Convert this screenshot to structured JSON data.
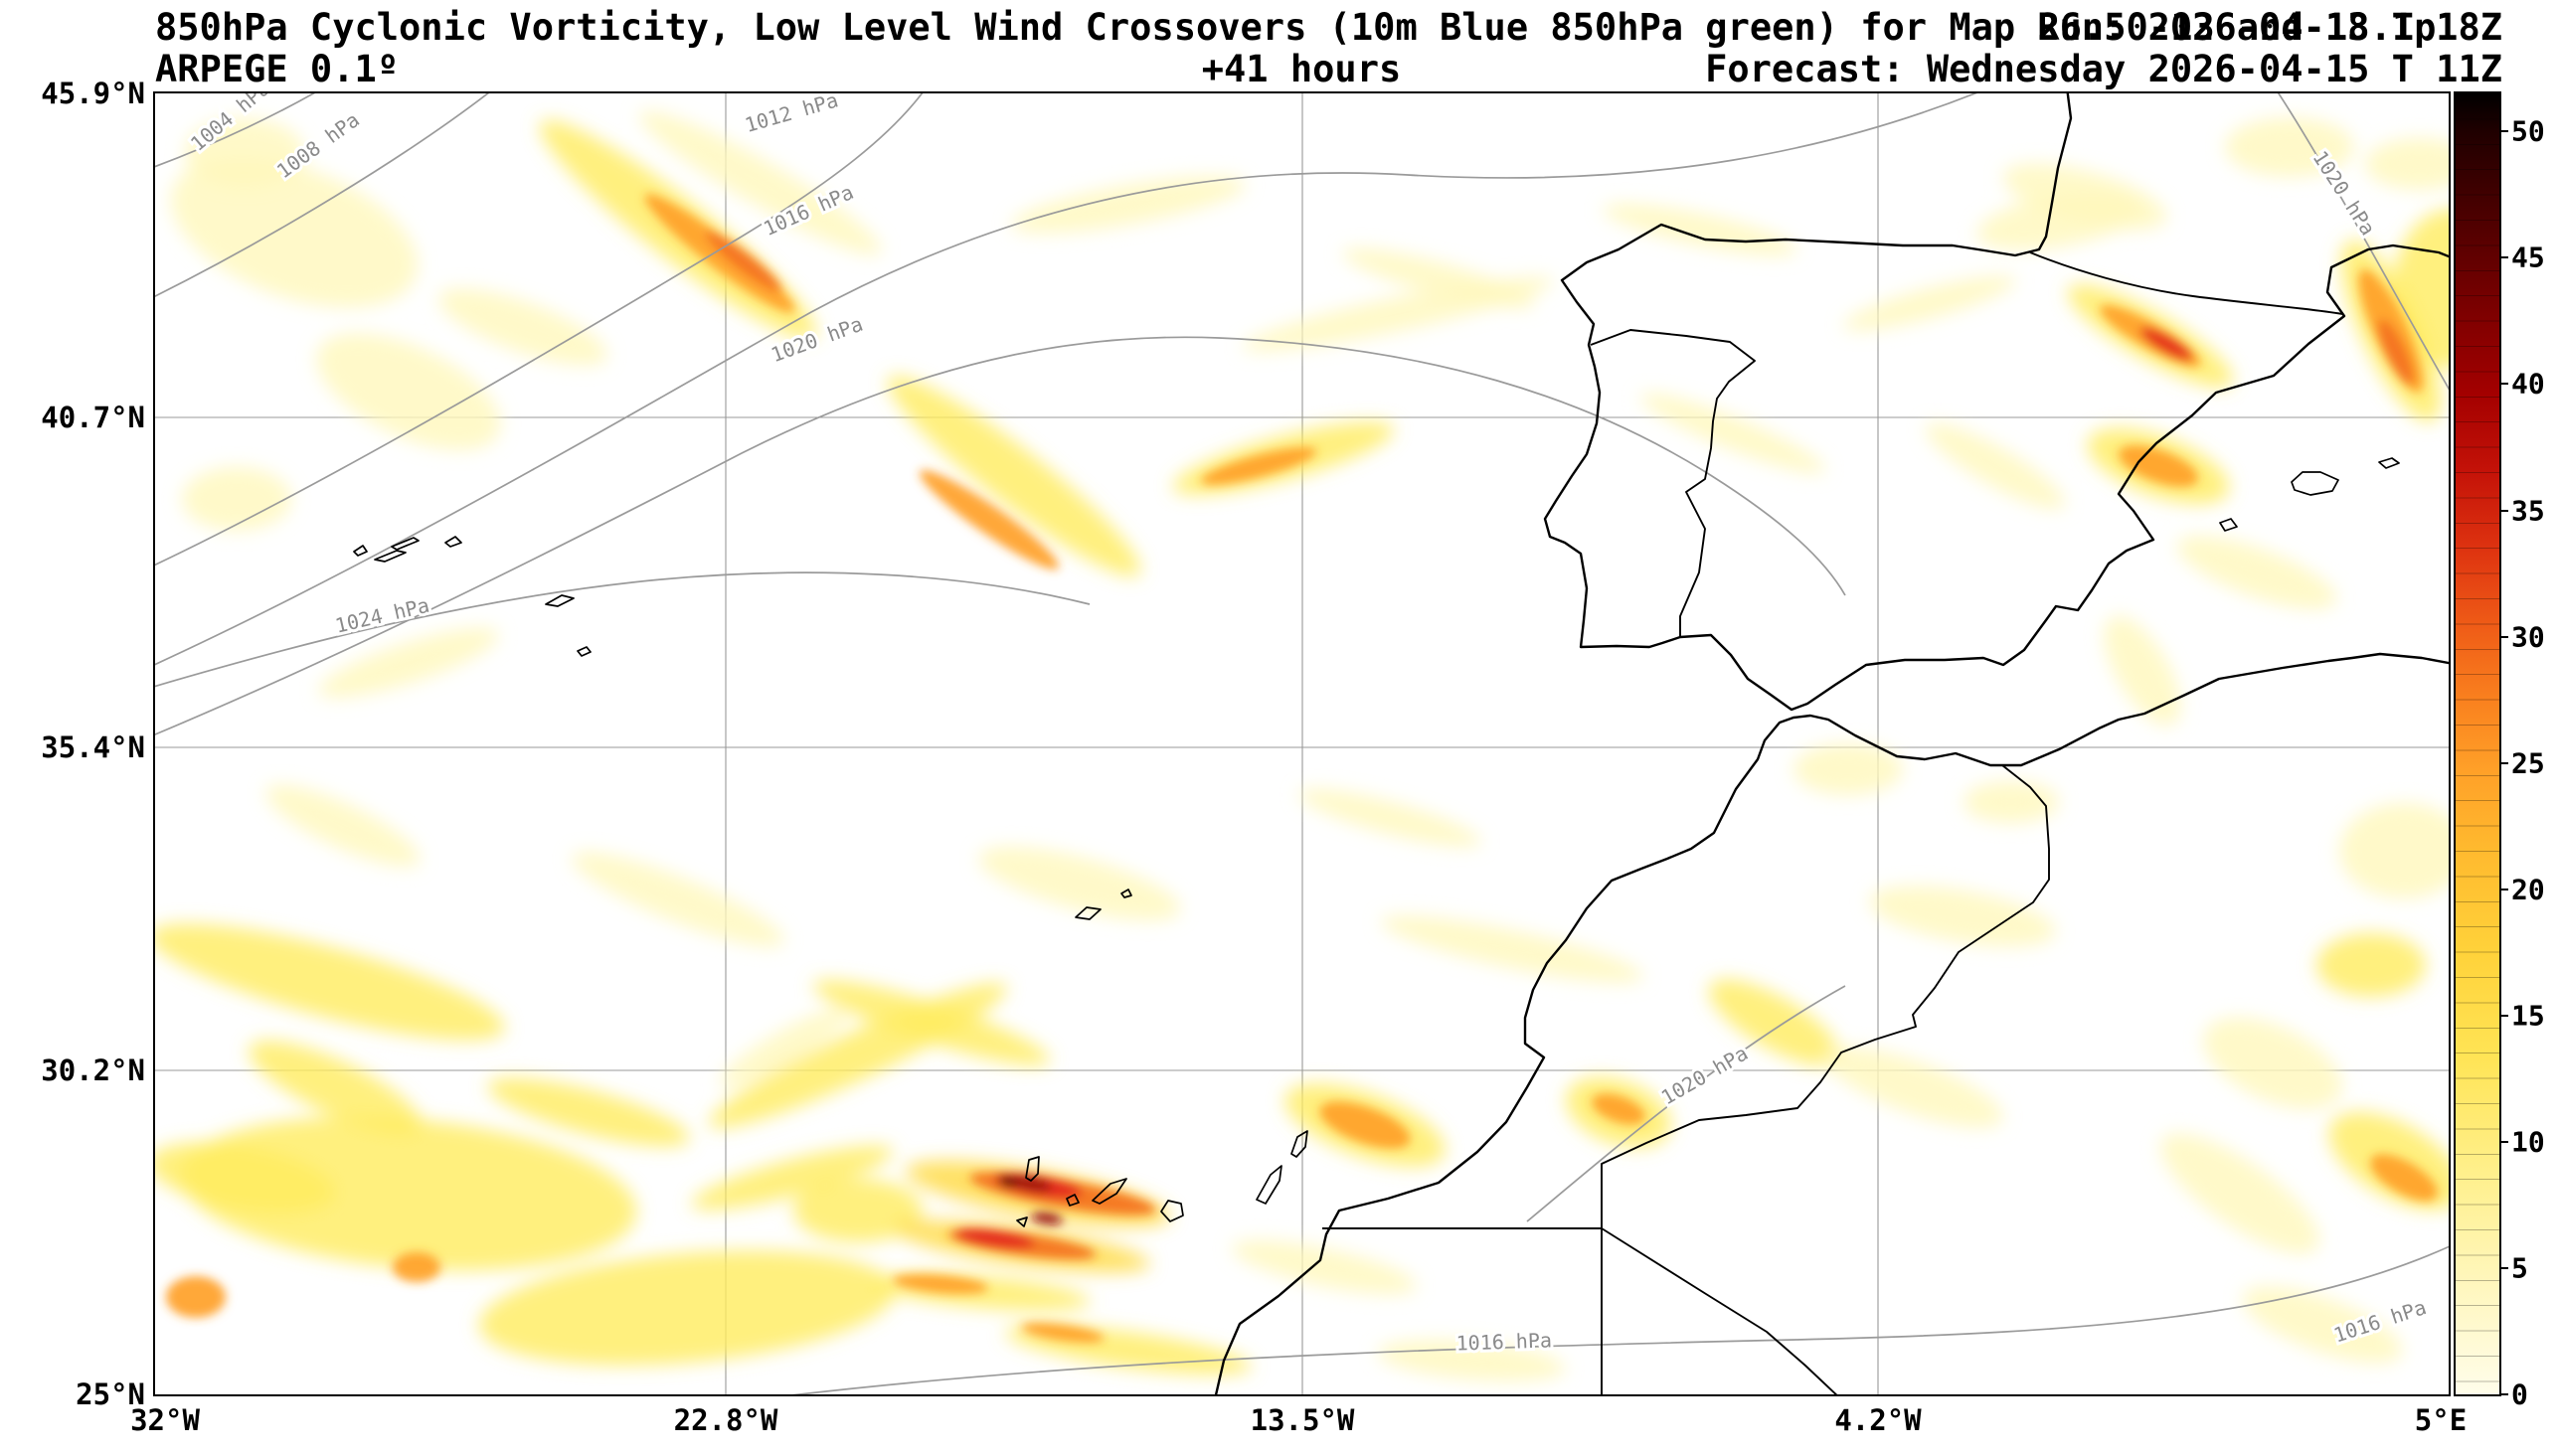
{
  "header": {
    "title": "850hPa Cyclonic Vorticity, Low Level Wind Crossovers (10m Blue 850hPa green) for Map 26.50-13 and 18.1p",
    "run": "Run: 2026-04-13 T 18Z",
    "model": "ARPEGE 0.1º",
    "lead_time": "+41 hours",
    "forecast": "Forecast: Wednesday 2026-04-15 T 11Z"
  },
  "axes": {
    "lat_labels": [
      "45.9°N",
      "40.7°N",
      "35.4°N",
      "30.2°N",
      "25°N"
    ],
    "lon_labels": [
      "32°W",
      "22.8°W",
      "13.5°W",
      "4.2°W",
      "5°E"
    ]
  },
  "colorbar": {
    "tick_labels": [
      "50",
      "45",
      "40",
      "35",
      "30",
      "25",
      "20",
      "15",
      "10",
      "5",
      "0"
    ],
    "vmin": 0,
    "vmax": 50
  },
  "map": {
    "isobar_labels": [
      "1004 hPa",
      "1008 hPa",
      "1012 hPa",
      "1016 hPa",
      "1020 hPa",
      "1024 hPa",
      "1020 hPa",
      "1020 hPa",
      "1016 hPa",
      "1016 hPa"
    ],
    "palette": {
      "p1": "#fff8bc",
      "p2": "#ffec5e",
      "p3": "#ffd93e",
      "o1": "#ffa126",
      "o2": "#f4711f",
      "r1": "#e3261d",
      "r2": "#99100d",
      "k1": "#400404"
    },
    "vorticity_blobs": [
      [
        140,
        140,
        130,
        65,
        20,
        "p1"
      ],
      [
        90,
        60,
        60,
        35,
        0,
        "p1"
      ],
      [
        255,
        300,
        100,
        45,
        25,
        "p1"
      ],
      [
        370,
        235,
        90,
        25,
        20,
        "p1"
      ],
      [
        609,
        90,
        140,
        22,
        30,
        "p1"
      ],
      [
        526,
        137,
        175,
        30,
        38,
        "p2"
      ],
      [
        864,
        385,
        160,
        28,
        38,
        "p2"
      ],
      [
        1135,
        367,
        115,
        22,
        -15,
        "p2"
      ],
      [
        979,
        112,
        120,
        20,
        -10,
        "p1"
      ],
      [
        1250,
        222,
        160,
        17,
        -12,
        "p1"
      ],
      [
        1291,
        186,
        100,
        16,
        15,
        "p1"
      ],
      [
        1554,
        137,
        100,
        16,
        12,
        "p1"
      ],
      [
        1941,
        104,
        85,
        26,
        15,
        "p1"
      ],
      [
        2147,
        54,
        65,
        30,
        0,
        "p1"
      ],
      [
        2278,
        71,
        55,
        26,
        0,
        "p1"
      ],
      [
        1916,
        128,
        85,
        26,
        -10,
        "p1"
      ],
      [
        2007,
        244,
        95,
        24,
        30,
        "p2"
      ],
      [
        2249,
        239,
        100,
        30,
        65,
        "p2"
      ],
      [
        2311,
        196,
        60,
        80,
        0,
        "p2"
      ],
      [
        2015,
        375,
        75,
        30,
        20,
        "p2"
      ],
      [
        2114,
        482,
        85,
        24,
        20,
        "p1"
      ],
      [
        1999,
        581,
        62,
        26,
        60,
        "p1"
      ],
      [
        1851,
        375,
        80,
        19,
        30,
        "p1"
      ],
      [
        1785,
        211,
        90,
        15,
        -15,
        "p1"
      ],
      [
        1587,
        342,
        100,
        16,
        22,
        "p1"
      ],
      [
        82,
        408,
        55,
        32,
        0,
        "p1"
      ],
      [
        255,
        573,
        95,
        20,
        -18,
        "p1"
      ],
      [
        189,
        737,
        85,
        22,
        25,
        "p1"
      ],
      [
        173,
        894,
        185,
        35,
        15,
        "p2"
      ],
      [
        526,
        811,
        115,
        22,
        22,
        "p1"
      ],
      [
        781,
        935,
        125,
        20,
        18,
        "p2"
      ],
      [
        930,
        795,
        105,
        26,
        15,
        "p1"
      ],
      [
        707,
        968,
        165,
        24,
        -25,
        "p2"
      ],
      [
        1242,
        729,
        95,
        16,
        15,
        "p1"
      ],
      [
        1365,
        861,
        135,
        19,
        12,
        "p1"
      ],
      [
        1629,
        935,
        75,
        26,
        30,
        "p2"
      ],
      [
        1769,
        1000,
        95,
        26,
        20,
        "p1"
      ],
      [
        1703,
        680,
        55,
        26,
        0,
        "p1"
      ],
      [
        1867,
        713,
        48,
        21,
        0,
        "p1"
      ],
      [
        1818,
        828,
        95,
        26,
        10,
        "p1"
      ],
      [
        255,
        1107,
        230,
        75,
        5,
        "p2"
      ],
      [
        535,
        1222,
        210,
        55,
        -5,
        "p2"
      ],
      [
        436,
        1025,
        105,
        22,
        15,
        "p2"
      ],
      [
        181,
        1000,
        95,
        27,
        25,
        "p2"
      ],
      [
        87,
        1091,
        95,
        32,
        10,
        "p2"
      ],
      [
        641,
        1091,
        105,
        18,
        -15,
        "p2"
      ],
      [
        633,
        960,
        75,
        16,
        -30,
        "p1"
      ],
      [
        707,
        1124,
        65,
        32,
        0,
        "p2"
      ],
      [
        979,
        1264,
        125,
        18,
        8,
        "p2"
      ],
      [
        1176,
        1181,
        95,
        19,
        12,
        "p1"
      ],
      [
        1324,
        1275,
        95,
        19,
        5,
        "p1"
      ],
      [
        1472,
        1025,
        55,
        32,
        20,
        "p2"
      ],
      [
        2097,
        1107,
        95,
        32,
        35,
        "p1"
      ],
      [
        2254,
        1074,
        75,
        37,
        30,
        "p2"
      ],
      [
        2180,
        1239,
        85,
        27,
        20,
        "p1"
      ],
      [
        2262,
        762,
        65,
        48,
        0,
        "p1"
      ],
      [
        2229,
        877,
        55,
        32,
        0,
        "p2"
      ],
      [
        2130,
        976,
        75,
        37,
        25,
        "p1"
      ],
      [
        888,
        1107,
        135,
        24,
        10,
        "p3"
      ],
      [
        872,
        1160,
        130,
        19,
        8,
        "p3"
      ],
      [
        831,
        1206,
        110,
        16,
        5,
        "p2"
      ],
      [
        1217,
        1038,
        85,
        32,
        20,
        "p2"
      ],
      [
        568,
        161,
        95,
        15,
        38,
        "o1"
      ],
      [
        592,
        169,
        48,
        9,
        38,
        "o2"
      ],
      [
        839,
        429,
        85,
        14,
        35,
        "o1"
      ],
      [
        1110,
        375,
        60,
        11,
        -15,
        "o1"
      ],
      [
        2007,
        244,
        58,
        13,
        30,
        "o1"
      ],
      [
        2023,
        252,
        30,
        8,
        30,
        "r1"
      ],
      [
        2249,
        239,
        68,
        17,
        65,
        "o1"
      ],
      [
        2254,
        260,
        36,
        10,
        65,
        "o2"
      ],
      [
        2015,
        375,
        42,
        16,
        20,
        "o1"
      ],
      [
        913,
        1107,
        95,
        14,
        10,
        "o2"
      ],
      [
        888,
        1099,
        45,
        10,
        10,
        "r1"
      ],
      [
        880,
        1097,
        22,
        7,
        10,
        "r2"
      ],
      [
        858,
        1095,
        10,
        5,
        10,
        "k1"
      ],
      [
        872,
        1158,
        75,
        11,
        8,
        "o2"
      ],
      [
        845,
        1152,
        40,
        8,
        8,
        "r1"
      ],
      [
        897,
        1132,
        16,
        6,
        8,
        "r2"
      ],
      [
        790,
        1198,
        48,
        9,
        5,
        "o1"
      ],
      [
        913,
        1247,
        42,
        8,
        8,
        "o1"
      ],
      [
        41,
        1211,
        30,
        21,
        0,
        "o1"
      ],
      [
        263,
        1181,
        24,
        15,
        0,
        "o1"
      ],
      [
        1217,
        1038,
        48,
        18,
        20,
        "o1"
      ],
      [
        1472,
        1022,
        28,
        13,
        20,
        "o1"
      ],
      [
        2262,
        1091,
        38,
        16,
        30,
        "o1"
      ]
    ]
  }
}
